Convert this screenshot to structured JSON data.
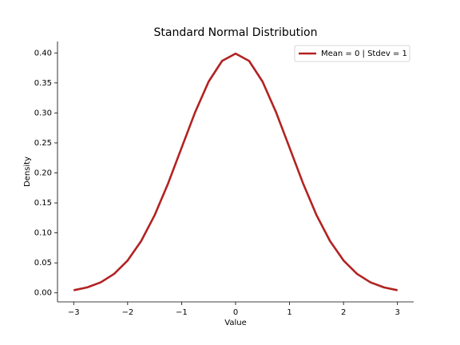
{
  "chart_data": {
    "type": "line",
    "title": "Standard Normal Distribution",
    "x_label": "Value",
    "y_label": "Density",
    "x": [
      -3,
      -2.75,
      -2.5,
      -2.25,
      -2,
      -1.75,
      -1.5,
      -1.25,
      -1,
      -0.75,
      -0.5,
      -0.25,
      0,
      0.25,
      0.5,
      0.75,
      1,
      1.25,
      1.5,
      1.75,
      2,
      2.25,
      2.5,
      2.75,
      3
    ],
    "series": [
      {
        "name": "Mean = 0 | Stdev = 1",
        "color": "#b22222",
        "values": [
          0.0044,
          0.0091,
          0.0175,
          0.0317,
          0.054,
          0.0863,
          0.1295,
          0.1826,
          0.242,
          0.3011,
          0.3521,
          0.3867,
          0.3989,
          0.3867,
          0.3521,
          0.3011,
          0.242,
          0.1826,
          0.1295,
          0.0863,
          0.054,
          0.0317,
          0.0175,
          0.0091,
          0.0044
        ]
      }
    ],
    "xlim": [
      -3.3,
      3.3
    ],
    "ylim": [
      -0.015,
      0.419
    ],
    "xticks": [
      {
        "value": -3,
        "label": "−3"
      },
      {
        "value": -2,
        "label": "−2"
      },
      {
        "value": -1,
        "label": "−1"
      },
      0,
      1,
      2,
      3
    ],
    "yticks": [
      {
        "value": 0,
        "label": "0.00"
      },
      {
        "value": 0.05,
        "label": "0.05"
      },
      {
        "value": 0.1,
        "label": "0.10"
      },
      {
        "value": 0.15,
        "label": "0.15"
      },
      {
        "value": 0.2,
        "label": "0.20"
      },
      {
        "value": 0.25,
        "label": "0.25"
      },
      {
        "value": 0.3,
        "label": "0.30"
      },
      {
        "value": 0.35,
        "label": "0.35"
      },
      {
        "value": 0.4,
        "label": "0.40"
      }
    ],
    "legend": "upper right"
  }
}
